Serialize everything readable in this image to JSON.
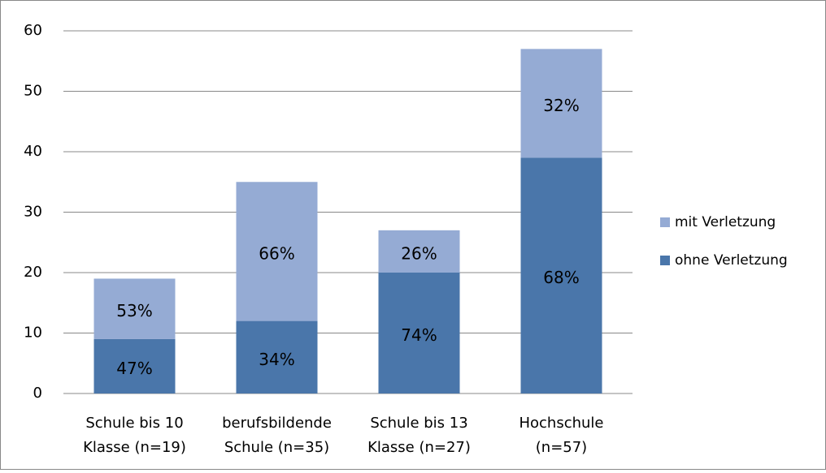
{
  "chart_data": {
    "type": "stacked_bar",
    "categories": [
      [
        "Schule bis 10",
        "Klasse (n=19)"
      ],
      [
        "berufsbildende",
        "Schule (n=35)"
      ],
      [
        "Schule bis 13",
        "Klasse (n=27)"
      ],
      [
        "Hochschule",
        "(n=57)"
      ]
    ],
    "series": [
      {
        "name": "ohne Verletzung",
        "color": "#4a76aa",
        "values": [
          9,
          12,
          20,
          39
        ],
        "percent_labels": [
          "47%",
          "34%",
          "74%",
          "68%"
        ]
      },
      {
        "name": "mit Verletzung",
        "color": "#95abd4",
        "values": [
          10,
          23,
          7,
          18
        ],
        "percent_labels": [
          "53%",
          "66%",
          "26%",
          "32%"
        ]
      }
    ],
    "ylim": [
      0,
      60
    ],
    "yticks": [
      0,
      10,
      20,
      30,
      40,
      50,
      60
    ],
    "grid": true,
    "legend": "right"
  }
}
